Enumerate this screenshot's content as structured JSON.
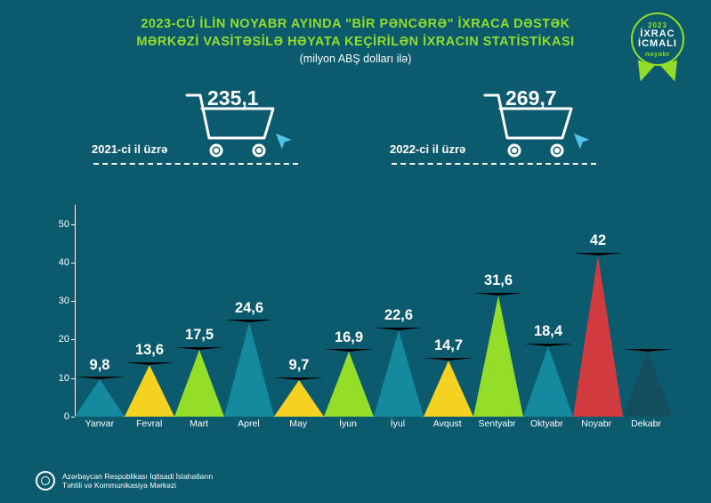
{
  "background_color": "#0b5a6e",
  "title": {
    "line1": "2023-CÜ İLİN NOYABR AYINDA \"BİR PƏNCƏRƏ\" İXRACA DƏSTƏK",
    "line2": "MƏRKƏZİ VASİTƏSİLƏ HƏYATA KEÇİRİLƏN İXRACIN STATİSTİKASI",
    "subtitle": "(milyon ABŞ dolları ilə)",
    "color": "#94de2a",
    "subtitle_color": "#ffffff",
    "fontsize": 14.5
  },
  "badge": {
    "year": "2023",
    "line1": "İXRAC",
    "line2": "İCMALI",
    "month": "noyabr",
    "ring_color": "#94de2a",
    "text_color": "#ffffff"
  },
  "carts": {
    "left": {
      "value": "235,1",
      "label": "2021-ci il üzrə"
    },
    "right": {
      "value": "269,7",
      "label": "2022-ci il üzrə"
    },
    "stroke": "#ffffff",
    "cursor_fill": "#4fc4e8"
  },
  "chart": {
    "type": "bar",
    "ylim": [
      0,
      55
    ],
    "ytick_step": 10,
    "yticks": [
      0,
      10,
      20,
      30,
      40,
      50
    ],
    "axis_color": "#ffffff",
    "peak_half_width": 28,
    "value_color": "#ffffff",
    "value_fontsize": 16.5,
    "xlabel_color": "#ffffff",
    "xlabel_fontsize": 10.5,
    "months": [
      "Yanvar",
      "Fevral",
      "Mart",
      "Aprel",
      "May",
      "İyun",
      "İyul",
      "Avqust",
      "Sentyabr",
      "Oktyabr",
      "Noyabr",
      "Dekabr"
    ],
    "values": [
      9.8,
      13.6,
      17.5,
      24.6,
      9.7,
      16.9,
      22.6,
      14.7,
      31.6,
      18.4,
      42,
      17
    ],
    "value_labels": [
      "9,8",
      "13,6",
      "17,5",
      "24,6",
      "9,7",
      "16,9",
      "22,6",
      "14,7",
      "31,6",
      "18,4",
      "42",
      ""
    ],
    "colors": [
      "#158a9e",
      "#f4d21f",
      "#94de2a",
      "#158a9e",
      "#f4d21f",
      "#94de2a",
      "#158a9e",
      "#f4d21f",
      "#94de2a",
      "#158a9e",
      "#d13a3f",
      "#134e5e"
    ]
  },
  "footer": {
    "line1": "Azərbaycan Respublikası İqtisadi İslahatların",
    "line2": "Təhlili və Kommunikasiya Mərkəzi",
    "color": "#ffffff"
  }
}
